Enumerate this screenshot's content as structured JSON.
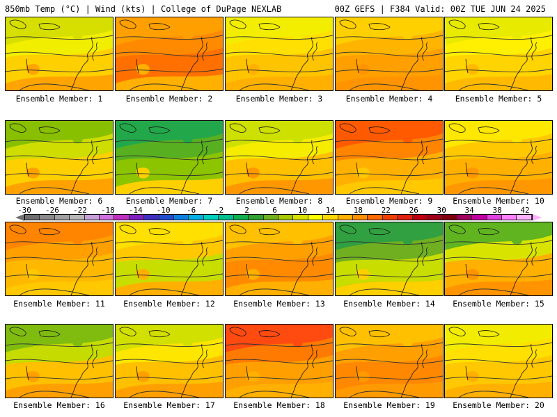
{
  "header": {
    "left_title": "850mb Temp (°C) | Wind (kts) | College of DuPage NEXLAB",
    "right_title": "00Z GEFS | F384 Valid: 00Z TUE JUN 24 2025"
  },
  "colorbar": {
    "labels": [
      "-30",
      "-26",
      "-22",
      "-18",
      "-14",
      "-10",
      "-6",
      "-2",
      "2",
      "6",
      "10",
      "14",
      "18",
      "22",
      "26",
      "30",
      "34",
      "38",
      "42"
    ],
    "colors": [
      "#707070",
      "#8a8a8a",
      "#a0a0a0",
      "#b8b8b8",
      "#c8a0d8",
      "#d070e0",
      "#c030c0",
      "#8020c0",
      "#4030c0",
      "#2050d0",
      "#1080e0",
      "#00b0e0",
      "#00d0c0",
      "#00c090",
      "#10b050",
      "#30a030",
      "#70b020",
      "#a8c800",
      "#d8e000",
      "#ffff00",
      "#ffd800",
      "#ffb000",
      "#ff9000",
      "#ff6a00",
      "#f04000",
      "#e02010",
      "#c00010",
      "#a00018",
      "#800010",
      "#a00060",
      "#c000a0",
      "#e040e0",
      "#ff80ff",
      "#ffb0ff"
    ]
  },
  "panels": [
    {
      "label": "Ensemble Member: 1",
      "fill": [
        "#d6df00",
        "#f2ee00",
        "#ffd000",
        "#ffa400"
      ]
    },
    {
      "label": "Ensemble Member: 2",
      "fill": [
        "#ffa000",
        "#ff8a00",
        "#ff7000",
        "#ffb000"
      ]
    },
    {
      "label": "Ensemble Member: 3",
      "fill": [
        "#f3ee00",
        "#ffe000",
        "#ffc400",
        "#ffb000"
      ]
    },
    {
      "label": "Ensemble Member: 4",
      "fill": [
        "#ffd000",
        "#ffb400",
        "#ffa000",
        "#ff9400"
      ]
    },
    {
      "label": "Ensemble Member: 5",
      "fill": [
        "#e8ea00",
        "#ffef00",
        "#ffd400",
        "#ffba00"
      ]
    },
    {
      "label": "Ensemble Member: 6",
      "fill": [
        "#88c000",
        "#cfdd00",
        "#ffd000",
        "#ffa200"
      ]
    },
    {
      "label": "Ensemble Member: 7",
      "fill": [
        "#22a84a",
        "#58b020",
        "#8cc400",
        "#ffd000"
      ]
    },
    {
      "label": "Ensemble Member: 8",
      "fill": [
        "#cde000",
        "#f5ec00",
        "#ffc000",
        "#ff9800"
      ]
    },
    {
      "label": "Ensemble Member: 9",
      "fill": [
        "#ff5a00",
        "#ff8400",
        "#ffb000",
        "#ffc800"
      ]
    },
    {
      "label": "Ensemble Member: 10",
      "fill": [
        "#ffe800",
        "#ffc800",
        "#ffb000",
        "#ff9800"
      ]
    },
    {
      "label": "Ensemble Member: 11",
      "fill": [
        "#ff8400",
        "#ffa000",
        "#ffb800",
        "#ffc800"
      ]
    },
    {
      "label": "Ensemble Member: 12",
      "fill": [
        "#ffe000",
        "#ffc800",
        "#c8dd00",
        "#ffb000"
      ]
    },
    {
      "label": "Ensemble Member: 13",
      "fill": [
        "#ffc000",
        "#ffa000",
        "#ff8a00",
        "#ffb000"
      ]
    },
    {
      "label": "Ensemble Member: 14",
      "fill": [
        "#30a040",
        "#70b020",
        "#c8dd00",
        "#ffd000"
      ]
    },
    {
      "label": "Ensemble Member: 15",
      "fill": [
        "#60b420",
        "#d8e400",
        "#ffb000",
        "#ff9400"
      ]
    },
    {
      "label": "Ensemble Member: 16",
      "fill": [
        "#80bc10",
        "#c6dc00",
        "#ffc000",
        "#ffa000"
      ]
    },
    {
      "label": "Ensemble Member: 17",
      "fill": [
        "#d2e000",
        "#ffe600",
        "#ffc000",
        "#ffa000"
      ]
    },
    {
      "label": "Ensemble Member: 18",
      "fill": [
        "#ff4a10",
        "#ff7a00",
        "#ffa000",
        "#ffb000"
      ]
    },
    {
      "label": "Ensemble Member: 19",
      "fill": [
        "#ffc000",
        "#ffa000",
        "#ff8800",
        "#ff9a00"
      ]
    },
    {
      "label": "Ensemble Member: 20",
      "fill": [
        "#f2ec00",
        "#ffe000",
        "#ffc800",
        "#ffb000"
      ]
    }
  ]
}
